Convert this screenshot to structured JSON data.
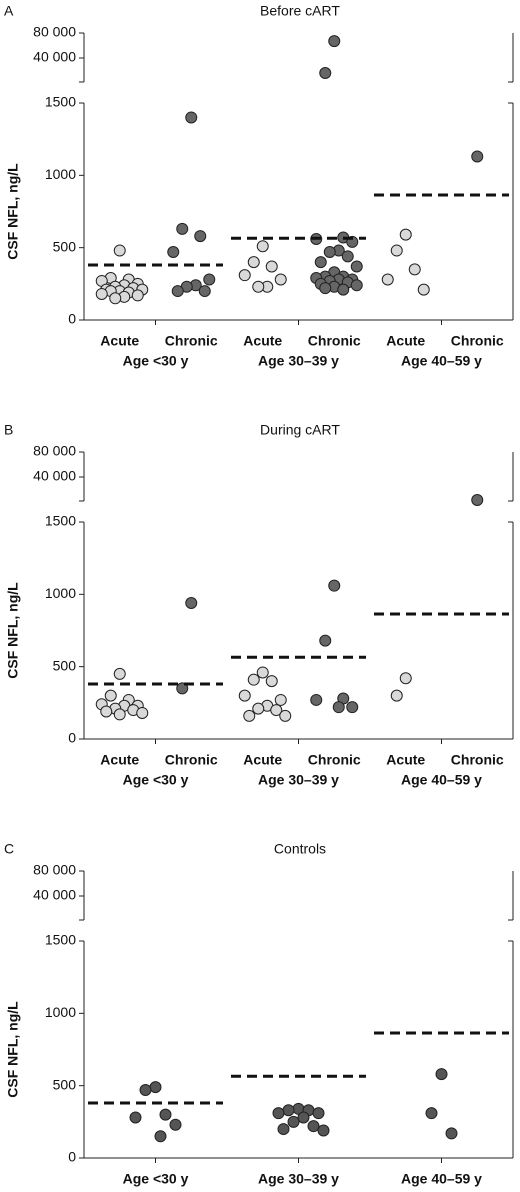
{
  "chart_data": [
    {
      "type": "strip",
      "panel_label": "A",
      "title": "Before cART",
      "y_label": "CSF NFL, ng/L",
      "ylim": [
        0,
        1500
      ],
      "yticks": [
        0,
        500,
        1000,
        1500
      ],
      "upper_ylim": [
        1600,
        88000
      ],
      "upper_yticks": [
        {
          "value": 40000,
          "label": "40 000"
        },
        {
          "value": 80000,
          "label": "80 000"
        }
      ],
      "groups": [
        {
          "label": "Age <30 y",
          "reference": 380,
          "subgroups": [
            {
              "label": "Acute",
              "color": "#d9d9d9",
              "values": [
                480,
                290,
                280,
                270,
                250,
                240,
                230,
                220,
                210,
                210,
                200,
                200,
                190,
                180,
                170,
                160,
                150
              ]
            },
            {
              "label": "Chronic",
              "color": "#666666",
              "values": [
                1400,
                630,
                580,
                470,
                280,
                240,
                230,
                200,
                200
              ]
            }
          ]
        },
        {
          "label": "Age 30–39 y",
          "reference": 565,
          "subgroups": [
            {
              "label": "Acute",
              "color": "#d9d9d9",
              "values": [
                510,
                400,
                370,
                310,
                280,
                230,
                230
              ]
            },
            {
              "label": "Chronic",
              "color": "#666666",
              "values": [
                67000,
                16000,
                570,
                560,
                540,
                480,
                470,
                440,
                400,
                370,
                330,
                300,
                300,
                290,
                280,
                280,
                270,
                260,
                250,
                240,
                230,
                220,
                210
              ]
            }
          ]
        },
        {
          "label": "Age 40–59 y",
          "reference": 864,
          "subgroups": [
            {
              "label": "Acute",
              "color": "#d9d9d9",
              "values": [
                590,
                480,
                350,
                280,
                210
              ]
            },
            {
              "label": "Chronic",
              "color": "#666666",
              "values": [
                1130
              ]
            }
          ]
        }
      ]
    },
    {
      "type": "strip",
      "panel_label": "B",
      "title": "During cART",
      "y_label": "CSF NFL, ng/L",
      "ylim": [
        0,
        1500
      ],
      "yticks": [
        0,
        500,
        1000,
        1500
      ],
      "upper_ylim": [
        1600,
        88000
      ],
      "upper_yticks": [
        {
          "value": 40000,
          "label": "40 000"
        },
        {
          "value": 80000,
          "label": "80 000"
        }
      ],
      "groups": [
        {
          "label": "Age <30 y",
          "reference": 380,
          "subgroups": [
            {
              "label": "Acute",
              "color": "#d9d9d9",
              "values": [
                450,
                300,
                270,
                240,
                230,
                230,
                210,
                200,
                190,
                180,
                170
              ]
            },
            {
              "label": "Chronic",
              "color": "#666666",
              "values": [
                940,
                350
              ]
            }
          ]
        },
        {
          "label": "Age 30–39 y",
          "reference": 565,
          "subgroups": [
            {
              "label": "Acute",
              "color": "#d9d9d9",
              "values": [
                460,
                410,
                400,
                300,
                270,
                230,
                210,
                200,
                160,
                160
              ]
            },
            {
              "label": "Chronic",
              "color": "#666666",
              "values": [
                1060,
                680,
                280,
                270,
                220,
                220
              ]
            }
          ]
        },
        {
          "label": "Age 40–59 y",
          "reference": 864,
          "subgroups": [
            {
              "label": "Acute",
              "color": "#d9d9d9",
              "values": [
                420,
                300
              ]
            },
            {
              "label": "Chronic",
              "color": "#666666",
              "values": [
                3200
              ]
            }
          ]
        }
      ]
    },
    {
      "type": "strip",
      "panel_label": "C",
      "title": "Controls",
      "y_label": "CSF NFL, ng/L",
      "ylim": [
        0,
        1500
      ],
      "yticks": [
        0,
        500,
        1000,
        1500
      ],
      "upper_ylim": [
        1600,
        88000
      ],
      "upper_yticks": [
        {
          "value": 40000,
          "label": "40 000"
        },
        {
          "value": 80000,
          "label": "80 000"
        }
      ],
      "groups": [
        {
          "label": "Age <30 y",
          "reference": 380,
          "subgroups": [
            {
              "color": "#555555",
              "values": [
                490,
                470,
                300,
                280,
                230,
                150
              ]
            }
          ]
        },
        {
          "label": "Age 30–39 y",
          "reference": 565,
          "subgroups": [
            {
              "color": "#555555",
              "values": [
                340,
                330,
                330,
                310,
                310,
                280,
                250,
                220,
                200,
                190
              ]
            }
          ]
        },
        {
          "label": "Age 40–59 y",
          "reference": 864,
          "subgroups": [
            {
              "color": "#555555",
              "values": [
                580,
                310,
                170
              ]
            }
          ]
        }
      ]
    }
  ]
}
